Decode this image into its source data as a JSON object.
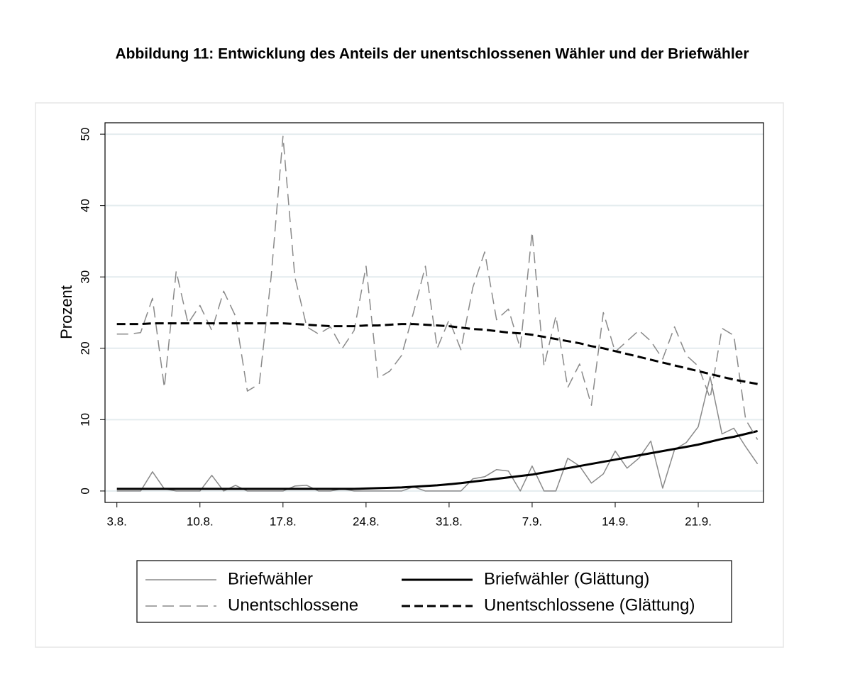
{
  "chart_data": {
    "type": "line",
    "title": "Abbildung 11: Entwicklung des Anteils der unentschlossenen Wähler und der Briefwähler",
    "ylabel": "Prozent",
    "x": [
      0,
      1,
      2,
      3,
      4,
      5,
      6,
      7,
      8,
      9,
      10,
      11,
      12,
      13,
      14,
      15,
      16,
      17,
      18,
      19,
      20,
      21,
      22,
      23,
      24,
      25,
      26,
      27,
      28,
      29,
      30,
      31,
      32,
      33,
      34,
      35,
      36,
      37,
      38,
      39,
      40,
      41,
      42,
      43,
      44,
      45,
      46,
      47,
      48,
      49,
      50,
      51,
      52,
      53,
      54
    ],
    "xlim": [
      -1,
      54.5
    ],
    "xticks": [
      {
        "value": 0,
        "label": "3.8."
      },
      {
        "value": 7,
        "label": "10.8."
      },
      {
        "value": 14,
        "label": "17.8."
      },
      {
        "value": 21,
        "label": "24.8."
      },
      {
        "value": 28,
        "label": "31.8."
      },
      {
        "value": 35,
        "label": "7.9."
      },
      {
        "value": 42,
        "label": "14.9."
      },
      {
        "value": 49,
        "label": "21.9."
      }
    ],
    "ylim": [
      -1.6,
      51.6
    ],
    "yticks": [
      0,
      10,
      20,
      30,
      40,
      50
    ],
    "grid": true,
    "series": [
      {
        "name": "Briefwähler",
        "color": "#8a8a8a",
        "dashed": false,
        "width": 1.5,
        "values": [
          0,
          0,
          0,
          2.7,
          0.3,
          0,
          0,
          0,
          2.2,
          0,
          0.8,
          0,
          0,
          0,
          0,
          0.7,
          0.8,
          0,
          0,
          0.3,
          0,
          0,
          0,
          0,
          0,
          0.6,
          0,
          0,
          0,
          0,
          1.7,
          2,
          3,
          2.8,
          0,
          3.5,
          0,
          0,
          4.6,
          3.5,
          1.1,
          2.4,
          5.6,
          3.2,
          4.6,
          7,
          0.4,
          5.8,
          6.8,
          9,
          16,
          8,
          8.8,
          6.2,
          3.8
        ]
      },
      {
        "name": "Briefwähler (Glättung)",
        "color": "#000000",
        "dashed": false,
        "width": 3,
        "values": [
          0.3,
          0.3,
          0.3,
          0.3,
          0.3,
          0.3,
          0.3,
          0.3,
          0.3,
          0.3,
          0.3,
          0.3,
          0.3,
          0.3,
          0.3,
          0.3,
          0.3,
          0.3,
          0.3,
          0.3,
          0.3,
          0.35,
          0.4,
          0.45,
          0.5,
          0.6,
          0.7,
          0.8,
          0.95,
          1.1,
          1.3,
          1.5,
          1.7,
          1.9,
          2.1,
          2.3,
          2.6,
          2.9,
          3.2,
          3.5,
          3.8,
          4.1,
          4.4,
          4.7,
          5,
          5.3,
          5.6,
          5.9,
          6.2,
          6.5,
          6.9,
          7.3,
          7.6,
          8,
          8.4
        ]
      },
      {
        "name": "Unentschlossene",
        "color": "#8a8a8a",
        "dashed": true,
        "width": 1.5,
        "values": [
          22,
          22,
          22.2,
          27,
          14.5,
          30.8,
          23.5,
          26,
          22.5,
          28,
          24.5,
          14,
          15,
          30,
          49.7,
          30,
          23,
          22,
          23,
          20,
          22.5,
          31.5,
          15.8,
          16.8,
          19,
          25,
          31.5,
          20,
          24,
          19.8,
          28.5,
          33.5,
          24,
          25.5,
          20,
          36.3,
          17.5,
          24.5,
          14.5,
          17.8,
          12,
          25,
          19.5,
          21,
          22.5,
          21,
          18.5,
          23,
          19,
          17.5,
          13,
          22.8,
          21.8,
          10,
          7.2
        ]
      },
      {
        "name": "Unentschlossene (Glättung)",
        "color": "#000000",
        "dashed": true,
        "width": 3,
        "values": [
          23.4,
          23.4,
          23.4,
          23.5,
          23.5,
          23.5,
          23.5,
          23.5,
          23.5,
          23.5,
          23.5,
          23.5,
          23.5,
          23.5,
          23.5,
          23.4,
          23.3,
          23.2,
          23.1,
          23.1,
          23.1,
          23.2,
          23.2,
          23.3,
          23.4,
          23.4,
          23.3,
          23.2,
          23.1,
          22.9,
          22.7,
          22.6,
          22.4,
          22.2,
          22.1,
          21.9,
          21.6,
          21.3,
          21,
          20.7,
          20.3,
          20,
          19.6,
          19.2,
          18.8,
          18.4,
          18,
          17.6,
          17.2,
          16.8,
          16.4,
          16,
          15.6,
          15.3,
          15
        ]
      }
    ]
  }
}
